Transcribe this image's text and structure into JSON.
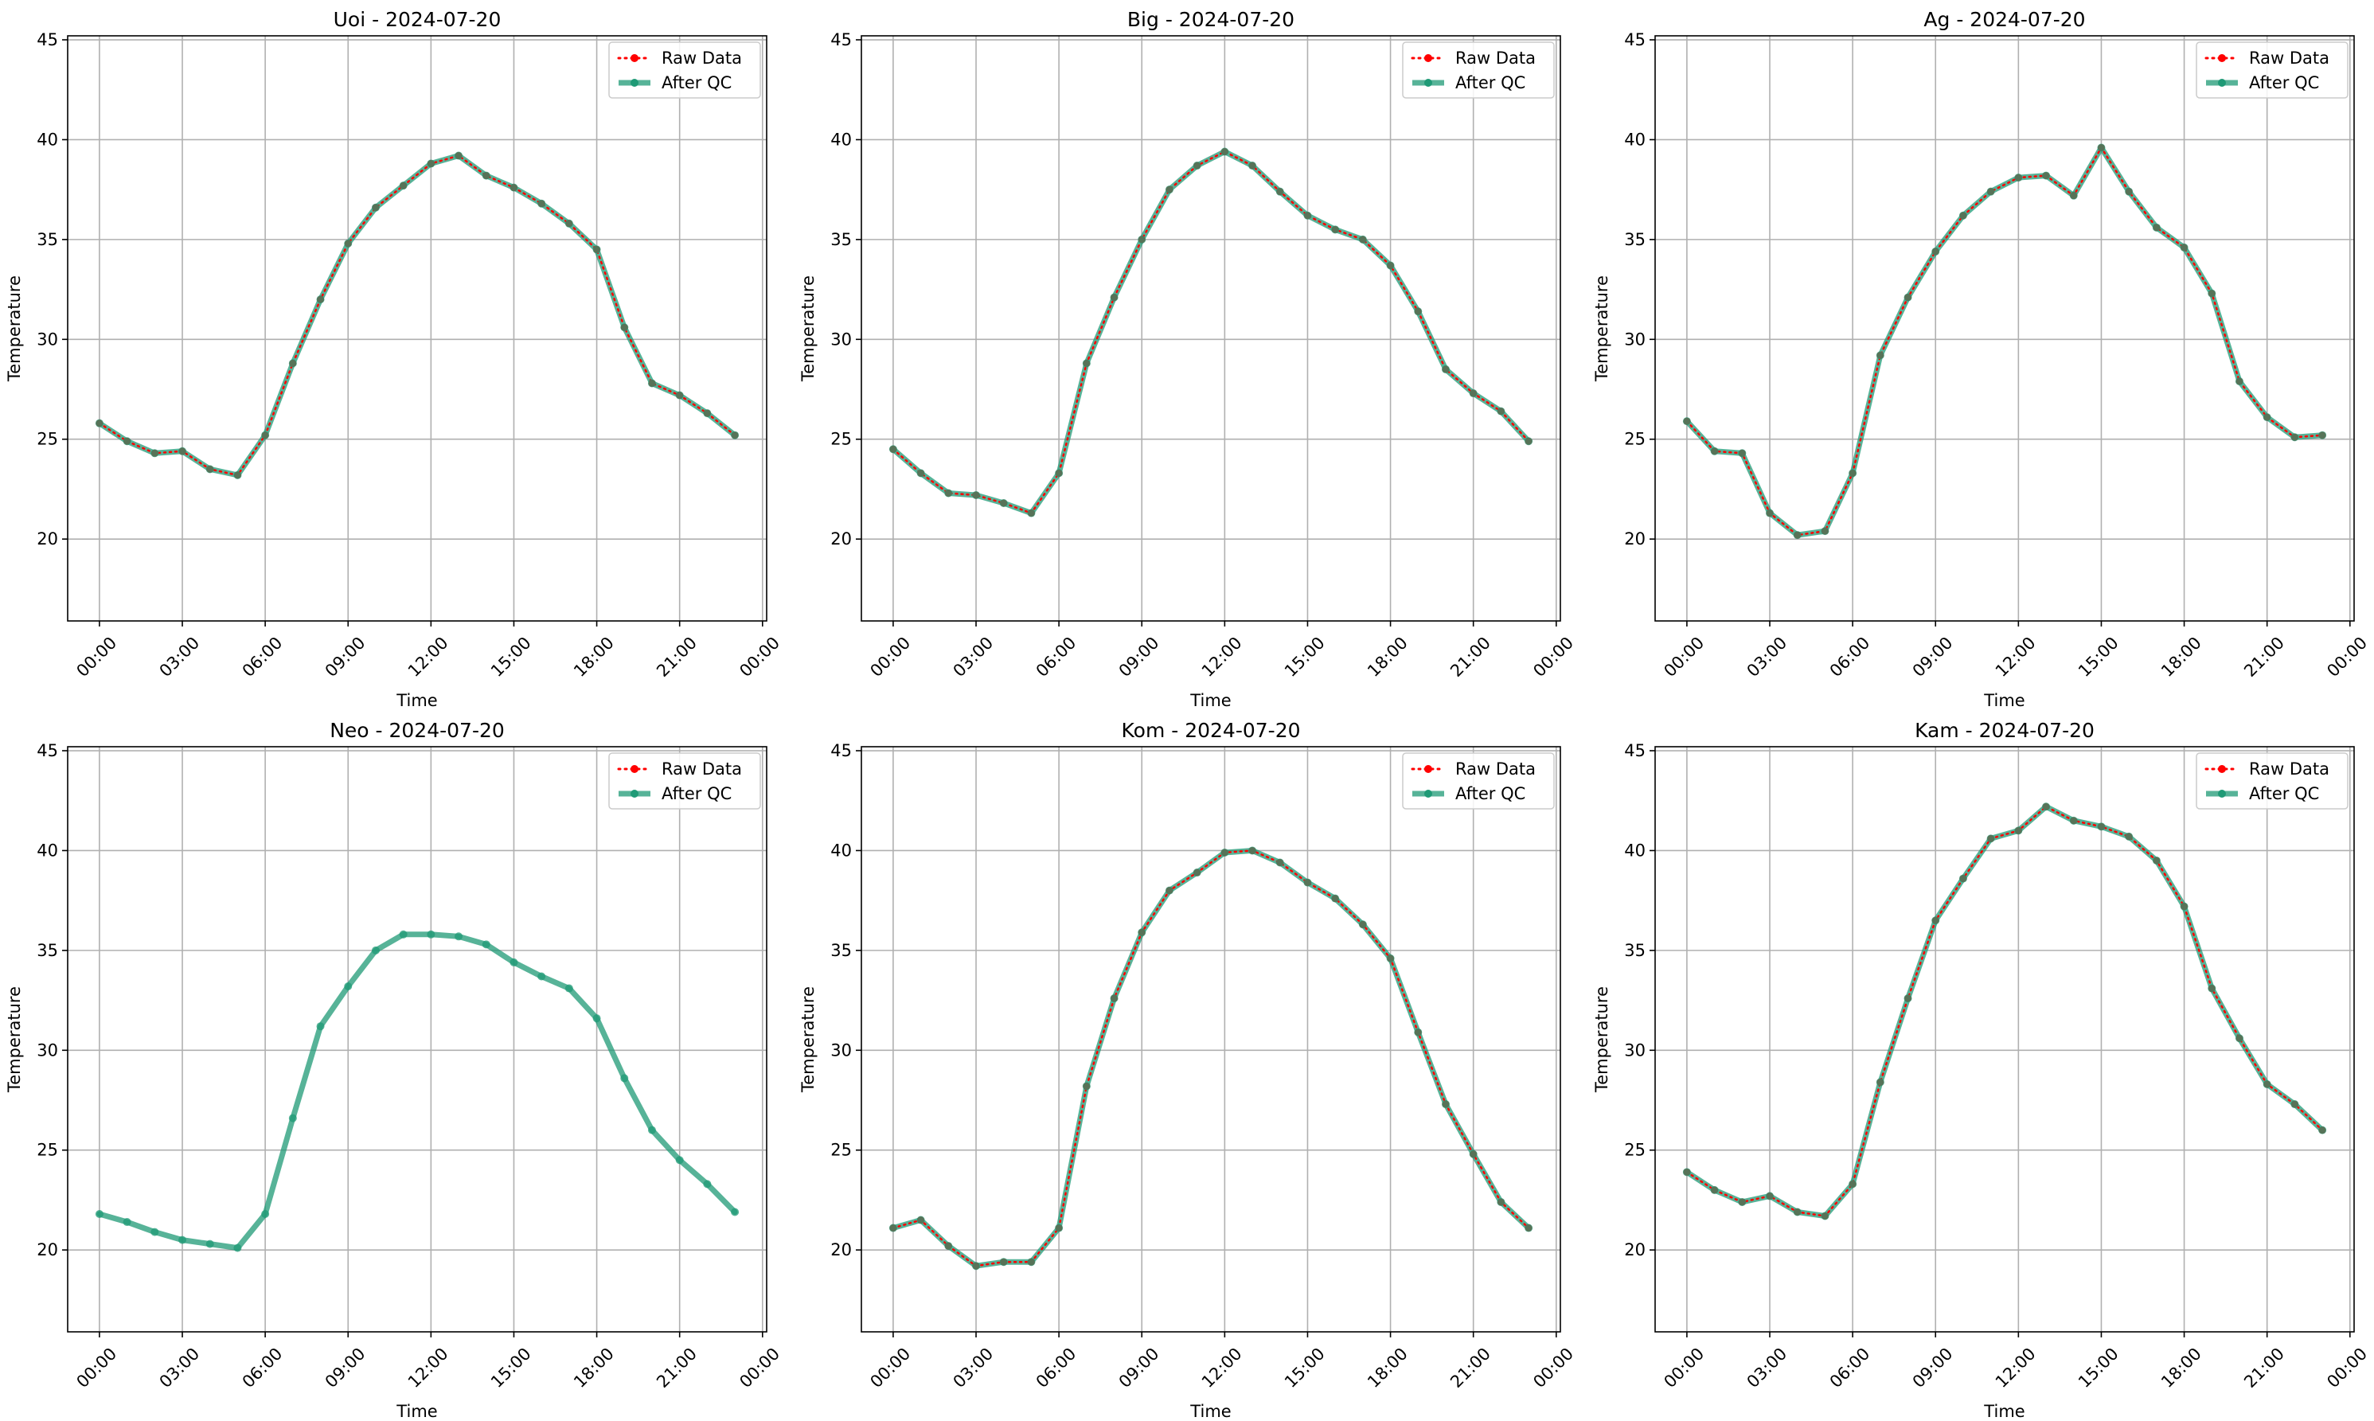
{
  "figure": {
    "shared_xlabel": "Time",
    "shared_ylabel": "Temperature",
    "legend_labels": {
      "raw": "Raw Data",
      "qc": "After QC"
    },
    "colors": {
      "raw": "#ff0000",
      "qc": "#1f9a76",
      "grid": "#b0b0b0",
      "axis": "#000000"
    }
  },
  "chart_data": [
    {
      "type": "line",
      "title": "Uoi - 2024-07-20",
      "xlabel": "Time",
      "ylabel": "Temperature",
      "xlim": [
        -1.15,
        24.15
      ],
      "ylim": [
        15.9,
        45.2
      ],
      "xticks": [
        0,
        3,
        6,
        9,
        12,
        15,
        18,
        21,
        24
      ],
      "xticklabels": [
        "00:00",
        "03:00",
        "06:00",
        "09:00",
        "12:00",
        "15:00",
        "18:00",
        "21:00",
        "00:00"
      ],
      "yticks": [
        20,
        25,
        30,
        35,
        40,
        45
      ],
      "grid": true,
      "legend": "top-right",
      "series": [
        {
          "name": "Raw Data",
          "x": [
            0,
            1,
            2,
            3,
            4,
            5,
            6,
            7,
            8,
            9,
            10,
            11,
            12,
            13,
            14,
            15,
            16,
            17,
            18,
            19,
            20,
            21,
            22,
            23
          ],
          "y": [
            25.8,
            24.9,
            24.3,
            24.4,
            23.5,
            23.2,
            25.2,
            28.8,
            32.0,
            34.8,
            36.6,
            37.7,
            38.8,
            39.2,
            38.2,
            37.6,
            36.8,
            35.8,
            34.5,
            30.6,
            27.8,
            27.2,
            26.3,
            25.2
          ]
        },
        {
          "name": "After QC",
          "x": [
            0,
            1,
            2,
            3,
            4,
            5,
            6,
            7,
            8,
            9,
            10,
            11,
            12,
            13,
            14,
            15,
            16,
            17,
            18,
            19,
            20,
            21,
            22,
            23
          ],
          "y": [
            25.8,
            24.9,
            24.3,
            24.4,
            23.5,
            23.2,
            25.2,
            28.8,
            32.0,
            34.8,
            36.6,
            37.7,
            38.8,
            39.2,
            38.2,
            37.6,
            36.8,
            35.8,
            34.5,
            30.6,
            27.8,
            27.2,
            26.3,
            25.2
          ]
        }
      ]
    },
    {
      "type": "line",
      "title": "Big - 2024-07-20",
      "xlabel": "Time",
      "ylabel": "Temperature",
      "xlim": [
        -1.15,
        24.15
      ],
      "ylim": [
        15.9,
        45.2
      ],
      "xticks": [
        0,
        3,
        6,
        9,
        12,
        15,
        18,
        21,
        24
      ],
      "xticklabels": [
        "00:00",
        "03:00",
        "06:00",
        "09:00",
        "12:00",
        "15:00",
        "18:00",
        "21:00",
        "00:00"
      ],
      "yticks": [
        20,
        25,
        30,
        35,
        40,
        45
      ],
      "grid": true,
      "legend": "top-right",
      "series": [
        {
          "name": "Raw Data",
          "x": [
            0,
            1,
            2,
            3,
            4,
            5,
            6,
            7,
            8,
            9,
            10,
            11,
            12,
            13,
            14,
            15,
            16,
            17,
            18,
            19,
            20,
            21,
            22,
            23
          ],
          "y": [
            24.5,
            23.3,
            22.3,
            22.2,
            21.8,
            21.3,
            23.3,
            28.8,
            32.1,
            35.0,
            37.5,
            38.7,
            39.4,
            38.7,
            37.4,
            36.2,
            35.5,
            35.0,
            33.7,
            31.4,
            28.5,
            27.3,
            26.4,
            24.9
          ]
        },
        {
          "name": "After QC",
          "x": [
            0,
            1,
            2,
            3,
            4,
            5,
            6,
            7,
            8,
            9,
            10,
            11,
            12,
            13,
            14,
            15,
            16,
            17,
            18,
            19,
            20,
            21,
            22,
            23
          ],
          "y": [
            24.5,
            23.3,
            22.3,
            22.2,
            21.8,
            21.3,
            23.3,
            28.8,
            32.1,
            35.0,
            37.5,
            38.7,
            39.4,
            38.7,
            37.4,
            36.2,
            35.5,
            35.0,
            33.7,
            31.4,
            28.5,
            27.3,
            26.4,
            24.9
          ]
        }
      ]
    },
    {
      "type": "line",
      "title": "Ag - 2024-07-20",
      "xlabel": "Time",
      "ylabel": "Temperature",
      "xlim": [
        -1.15,
        24.15
      ],
      "ylim": [
        15.9,
        45.2
      ],
      "xticks": [
        0,
        3,
        6,
        9,
        12,
        15,
        18,
        21,
        24
      ],
      "xticklabels": [
        "00:00",
        "03:00",
        "06:00",
        "09:00",
        "12:00",
        "15:00",
        "18:00",
        "21:00",
        "00:00"
      ],
      "yticks": [
        20,
        25,
        30,
        35,
        40,
        45
      ],
      "grid": true,
      "legend": "top-right",
      "series": [
        {
          "name": "Raw Data",
          "x": [
            0,
            1,
            2,
            3,
            4,
            5,
            6,
            7,
            8,
            9,
            10,
            11,
            12,
            13,
            14,
            15,
            16,
            17,
            18,
            19,
            20,
            21,
            22,
            23
          ],
          "y": [
            25.9,
            24.4,
            24.3,
            21.3,
            20.2,
            20.4,
            23.3,
            29.2,
            32.1,
            34.4,
            36.2,
            37.4,
            38.1,
            38.2,
            37.2,
            39.6,
            37.4,
            35.6,
            34.6,
            32.3,
            27.9,
            26.1,
            25.1,
            25.2
          ]
        },
        {
          "name": "After QC",
          "x": [
            0,
            1,
            2,
            3,
            4,
            5,
            6,
            7,
            8,
            9,
            10,
            11,
            12,
            13,
            14,
            15,
            16,
            17,
            18,
            19,
            20,
            21,
            22,
            23
          ],
          "y": [
            25.9,
            24.4,
            24.3,
            21.3,
            20.2,
            20.4,
            23.3,
            29.2,
            32.1,
            34.4,
            36.2,
            37.4,
            38.1,
            38.2,
            37.2,
            39.6,
            37.4,
            35.6,
            34.6,
            32.3,
            27.9,
            26.1,
            25.1,
            25.2
          ]
        }
      ]
    },
    {
      "type": "line",
      "title": "Neo - 2024-07-20",
      "xlabel": "Time",
      "ylabel": "Temperature",
      "xlim": [
        -1.15,
        24.15
      ],
      "ylim": [
        15.9,
        45.2
      ],
      "xticks": [
        0,
        3,
        6,
        9,
        12,
        15,
        18,
        21,
        24
      ],
      "xticklabels": [
        "00:00",
        "03:00",
        "06:00",
        "09:00",
        "12:00",
        "15:00",
        "18:00",
        "21:00",
        "00:00"
      ],
      "yticks": [
        20,
        25,
        30,
        35,
        40,
        45
      ],
      "grid": true,
      "legend": "top-right",
      "series": [
        {
          "name": "Raw Data",
          "x": [],
          "y": []
        },
        {
          "name": "After QC",
          "x": [
            0,
            1,
            2,
            3,
            4,
            5,
            6,
            7,
            8,
            9,
            10,
            11,
            12,
            13,
            14,
            15,
            16,
            17,
            18,
            19,
            20,
            21,
            22,
            23
          ],
          "y": [
            21.8,
            21.4,
            20.9,
            20.5,
            20.3,
            20.1,
            21.8,
            26.6,
            31.2,
            33.2,
            35.0,
            35.8,
            35.8,
            35.7,
            35.3,
            34.4,
            33.7,
            33.1,
            31.6,
            28.6,
            26.0,
            24.5,
            23.3,
            21.9
          ]
        }
      ]
    },
    {
      "type": "line",
      "title": "Kom - 2024-07-20",
      "xlabel": "Time",
      "ylabel": "Temperature",
      "xlim": [
        -1.15,
        24.15
      ],
      "ylim": [
        15.9,
        45.2
      ],
      "xticks": [
        0,
        3,
        6,
        9,
        12,
        15,
        18,
        21,
        24
      ],
      "xticklabels": [
        "00:00",
        "03:00",
        "06:00",
        "09:00",
        "12:00",
        "15:00",
        "18:00",
        "21:00",
        "00:00"
      ],
      "yticks": [
        20,
        25,
        30,
        35,
        40,
        45
      ],
      "grid": true,
      "legend": "top-right",
      "series": [
        {
          "name": "Raw Data",
          "x": [
            0,
            1,
            2,
            3,
            4,
            5,
            6,
            7,
            8,
            9,
            10,
            11,
            12,
            13,
            14,
            15,
            16,
            17,
            18,
            19,
            20,
            21,
            22,
            23
          ],
          "y": [
            21.1,
            21.5,
            20.2,
            19.2,
            19.4,
            19.4,
            21.1,
            28.2,
            32.6,
            35.9,
            38.0,
            38.9,
            39.9,
            40.0,
            39.4,
            38.4,
            37.6,
            36.3,
            34.6,
            30.9,
            27.3,
            24.8,
            22.4,
            21.1
          ]
        },
        {
          "name": "After QC",
          "x": [
            0,
            1,
            2,
            3,
            4,
            5,
            6,
            7,
            8,
            9,
            10,
            11,
            12,
            13,
            14,
            15,
            16,
            17,
            18,
            19,
            20,
            21,
            22,
            23
          ],
          "y": [
            21.1,
            21.5,
            20.2,
            19.2,
            19.4,
            19.4,
            21.1,
            28.2,
            32.6,
            35.9,
            38.0,
            38.9,
            39.9,
            40.0,
            39.4,
            38.4,
            37.6,
            36.3,
            34.6,
            30.9,
            27.3,
            24.8,
            22.4,
            21.1
          ]
        }
      ]
    },
    {
      "type": "line",
      "title": "Kam - 2024-07-20",
      "xlabel": "Time",
      "ylabel": "Temperature",
      "xlim": [
        -1.15,
        24.15
      ],
      "ylim": [
        15.9,
        45.2
      ],
      "xticks": [
        0,
        3,
        6,
        9,
        12,
        15,
        18,
        21,
        24
      ],
      "xticklabels": [
        "00:00",
        "03:00",
        "06:00",
        "09:00",
        "12:00",
        "15:00",
        "18:00",
        "21:00",
        "00:00"
      ],
      "yticks": [
        20,
        25,
        30,
        35,
        40,
        45
      ],
      "grid": true,
      "legend": "top-right",
      "series": [
        {
          "name": "Raw Data",
          "x": [
            0,
            1,
            2,
            3,
            4,
            5,
            6,
            7,
            8,
            9,
            10,
            11,
            12,
            13,
            14,
            15,
            16,
            17,
            18,
            19,
            20,
            21,
            22,
            23
          ],
          "y": [
            23.9,
            23.0,
            22.4,
            22.7,
            21.9,
            21.7,
            23.3,
            28.4,
            32.6,
            36.5,
            38.6,
            40.6,
            41.0,
            42.2,
            41.5,
            41.2,
            40.7,
            39.5,
            37.2,
            33.1,
            30.6,
            28.3,
            27.3,
            26.0
          ]
        },
        {
          "name": "After QC",
          "x": [
            0,
            1,
            2,
            3,
            4,
            5,
            6,
            7,
            8,
            9,
            10,
            11,
            12,
            13,
            14,
            15,
            16,
            17,
            18,
            19,
            20,
            21,
            22,
            23
          ],
          "y": [
            23.9,
            23.0,
            22.4,
            22.7,
            21.9,
            21.7,
            23.3,
            28.4,
            32.6,
            36.5,
            38.6,
            40.6,
            41.0,
            42.2,
            41.5,
            41.2,
            40.7,
            39.5,
            37.2,
            33.1,
            30.6,
            28.3,
            27.3,
            26.0
          ]
        }
      ]
    }
  ]
}
